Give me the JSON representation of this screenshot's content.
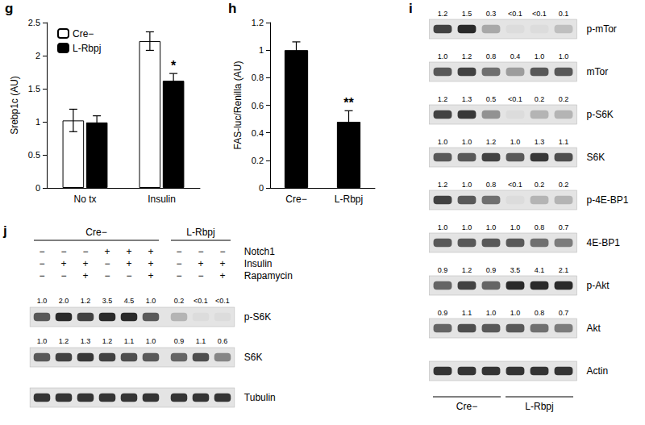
{
  "chart_data": [
    {
      "panel": "g",
      "type": "bar",
      "y_label": "Srebp1c (AU)",
      "categories": [
        "No tx",
        "Insulin"
      ],
      "series": [
        {
          "name": "Cre−",
          "color": "#ffffff",
          "values": [
            1.02,
            2.22
          ],
          "errors": [
            0.17,
            0.14
          ]
        },
        {
          "name": "L-Rbpj",
          "color": "#000000",
          "values": [
            0.99,
            1.62
          ],
          "errors": [
            0.1,
            0.11
          ]
        }
      ],
      "ylim": [
        0,
        2.5
      ],
      "yticks": [
        0,
        0.5,
        1,
        1.5,
        2,
        2.5
      ],
      "grid": false,
      "legend": "upper left",
      "annotations": [
        {
          "text": "*",
          "category": "Insulin",
          "series": "L-Rbpj"
        }
      ]
    },
    {
      "panel": "h",
      "type": "bar",
      "y_label": "FAS-luc/Renilla (AU)",
      "categories": [
        "Cre−",
        "L-Rbpj"
      ],
      "values": [
        1.0,
        0.48
      ],
      "errors": [
        0.06,
        0.08
      ],
      "color": "#000000",
      "ylim": [
        0,
        1.2
      ],
      "yticks": [
        0,
        0.2,
        0.4,
        0.6,
        0.8,
        1,
        1.2
      ],
      "grid": false,
      "annotations": [
        {
          "text": "**",
          "category": "L-Rbpj"
        }
      ]
    }
  ],
  "blots": [
    {
      "panel": "i",
      "rows": [
        {
          "label": "p-mTor",
          "values": [
            "1.2",
            "1.5",
            "0.3",
            "<0.1",
            "<0.1",
            "0.1"
          ]
        },
        {
          "label": "mTor",
          "values": [
            "1.0",
            "1.2",
            "0.8",
            "0.4",
            "1.0",
            "1.0"
          ]
        },
        {
          "label": "p-S6K",
          "values": [
            "1.2",
            "1.3",
            "0.5",
            "<0.1",
            "0.2",
            "0.2"
          ]
        },
        {
          "label": "S6K",
          "values": [
            "1.0",
            "1.0",
            "1.2",
            "1.0",
            "1.3",
            "1.1"
          ]
        },
        {
          "label": "p-4E-BP1",
          "values": [
            "1.2",
            "1.0",
            "0.8",
            "<0.1",
            "0.2",
            "0.2"
          ]
        },
        {
          "label": "4E-BP1",
          "values": [
            "1.0",
            "1.0",
            "1.0",
            "1.0",
            "0.8",
            "0.7"
          ]
        },
        {
          "label": "p-Akt",
          "values": [
            "0.9",
            "1.2",
            "0.9",
            "3.5",
            "4.1",
            "2.1"
          ]
        },
        {
          "label": "Akt",
          "values": [
            "0.9",
            "1.1",
            "1.0",
            "1.0",
            "0.8",
            "0.7"
          ]
        },
        {
          "label": "Actin"
        }
      ],
      "groups": [
        {
          "label": "Cre−",
          "lanes": 3
        },
        {
          "label": "L-Rbpj",
          "lanes": 3
        }
      ]
    },
    {
      "panel": "j",
      "groups": [
        {
          "label": "Cre−",
          "lanes": 6
        },
        {
          "label": "L-Rbpj",
          "lanes": 3
        }
      ],
      "conditions": [
        {
          "label": "Notch1",
          "signs": [
            "−",
            "−",
            "−",
            "+",
            "+",
            "+",
            "−",
            "−",
            "−"
          ]
        },
        {
          "label": "Insulin",
          "signs": [
            "−",
            "+",
            "+",
            "−",
            "+",
            "+",
            "−",
            "+",
            "+"
          ]
        },
        {
          "label": "Rapamycin",
          "signs": [
            "−",
            "−",
            "+",
            "−",
            "−",
            "+",
            "−",
            "−",
            "+"
          ]
        }
      ],
      "rows": [
        {
          "label": "p-S6K",
          "values": [
            "1.0",
            "2.0",
            "1.2",
            "3.5",
            "4.5",
            "1.0",
            "0.2",
            "<0.1",
            "<0.1"
          ]
        },
        {
          "label": "S6K",
          "values": [
            "1.0",
            "1.2",
            "1.3",
            "1.2",
            "1.1",
            "1.0",
            "0.9",
            "1.1",
            "0.6"
          ]
        },
        {
          "label": "Tubulin"
        }
      ]
    }
  ]
}
